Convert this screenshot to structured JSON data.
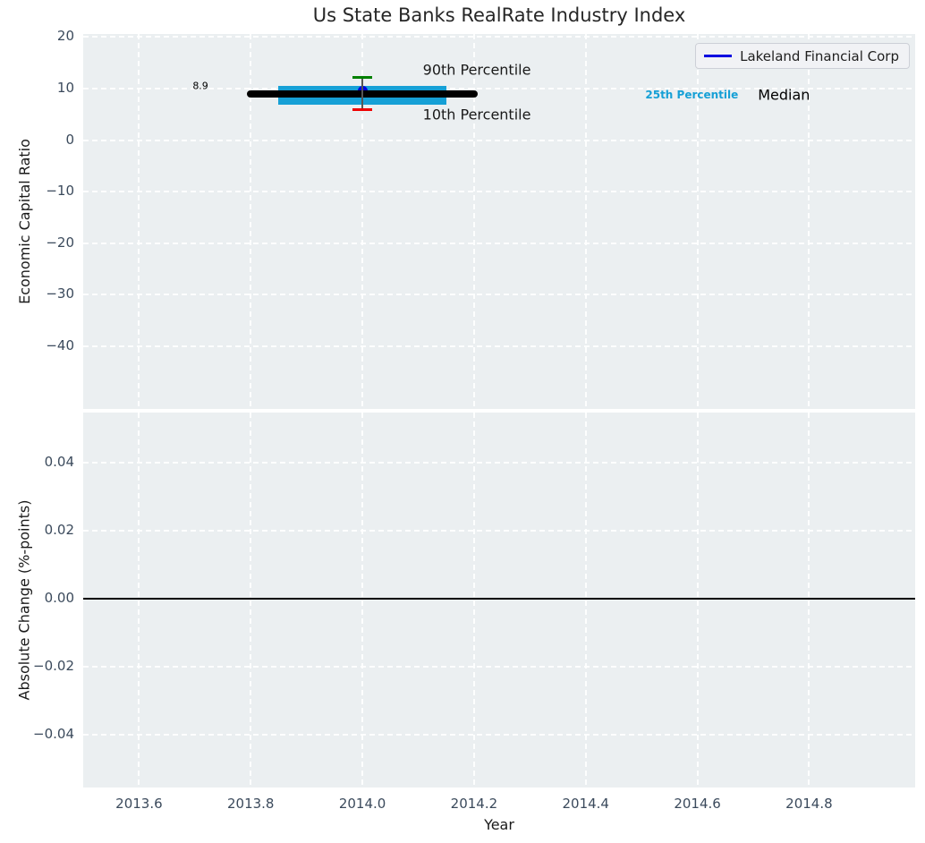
{
  "colors": {
    "plot_background": "#ebeff1",
    "grid": "#ffffff",
    "tick_label": "#3b4a5c",
    "title": "#262626",
    "axis_label": "#1a1a1a",
    "company_blue": "#0000e0",
    "median_black": "#000000",
    "iqr_cyan": "#16a0d6",
    "p90_green": "#008000",
    "p10_red": "#ee0000",
    "whisker_gray": "#555555"
  },
  "chart_data": [
    {
      "type": "percentile_band",
      "title": "Us State Banks RealRate Industry Index",
      "ylabel": "Economic Capital Ratio",
      "xlim": [
        2013.5,
        2014.99
      ],
      "ylim": [
        -52.2,
        20.6
      ],
      "grid": true,
      "xticks": [
        2013.6,
        2013.8,
        2014.0,
        2014.2,
        2014.4,
        2014.6,
        2014.8
      ],
      "yticks": [
        20,
        10,
        0,
        -10,
        -20,
        -30,
        -40
      ],
      "ytick_labels": [
        "20",
        "10",
        "0",
        "−10",
        "−20",
        "−30",
        "−40"
      ],
      "legend": {
        "label": "Lakeland Financial Corp",
        "color": "#0000e0",
        "position": "upper right"
      },
      "series": {
        "company_point": {
          "name": "Lakeland Financial Corp",
          "x": 2014.0,
          "y": 9.5,
          "color": "#0000e0",
          "marker_size": 11
        },
        "median": {
          "value": 8.9,
          "x_start": 2013.8,
          "x_end": 2014.2,
          "color": "#000000",
          "line_width": 8
        },
        "iqr_band": {
          "p25": 6.8,
          "p75": 10.6,
          "x_start": 2013.85,
          "x_end": 2014.15,
          "color": "#16a0d6"
        },
        "whisker": {
          "x": 2014.0,
          "p90": 12.2,
          "p10": 5.9,
          "cap_half_width": 0.018,
          "p90_color": "#008000",
          "p10_color": "#ee0000",
          "line_color": "#555555"
        }
      },
      "annotations": [
        {
          "text": "8.9",
          "x": 2013.71,
          "y": 10.6,
          "color": "#000000",
          "size": 11,
          "weight": "normal"
        },
        {
          "text": "90th Percentile",
          "x": 2014.205,
          "y": 13.6,
          "color": "#1a1a1a",
          "size": 16,
          "weight": "normal"
        },
        {
          "text": "10th Percentile",
          "x": 2014.205,
          "y": 4.9,
          "color": "#1a1a1a",
          "size": 16,
          "weight": "normal"
        },
        {
          "text": "25th Percentile",
          "x": 2014.59,
          "y": 8.8,
          "color": "#16a0d6",
          "size": 12,
          "weight": "bold"
        },
        {
          "text": "Median",
          "x": 2014.755,
          "y": 8.8,
          "color": "#000000",
          "size": 16,
          "weight": "normal"
        }
      ]
    },
    {
      "type": "line",
      "ylabel": "Absolute Change (%-points)",
      "xlabel": "Year",
      "xlim": [
        2013.5,
        2014.99
      ],
      "ylim": [
        -0.0557,
        0.0549
      ],
      "grid": true,
      "xticks": [
        2013.6,
        2013.8,
        2014.0,
        2014.2,
        2014.4,
        2014.6,
        2014.8
      ],
      "xtick_labels": [
        "2013.6",
        "2013.8",
        "2014.0",
        "2014.2",
        "2014.4",
        "2014.6",
        "2014.8"
      ],
      "yticks": [
        0.04,
        0.02,
        0.0,
        -0.02,
        -0.04
      ],
      "ytick_labels": [
        "0.04",
        "0.02",
        "0.00",
        "−0.02",
        "−0.04"
      ],
      "zero_line": {
        "y": 0.0,
        "color": "#000000",
        "line_width": 2
      }
    }
  ]
}
